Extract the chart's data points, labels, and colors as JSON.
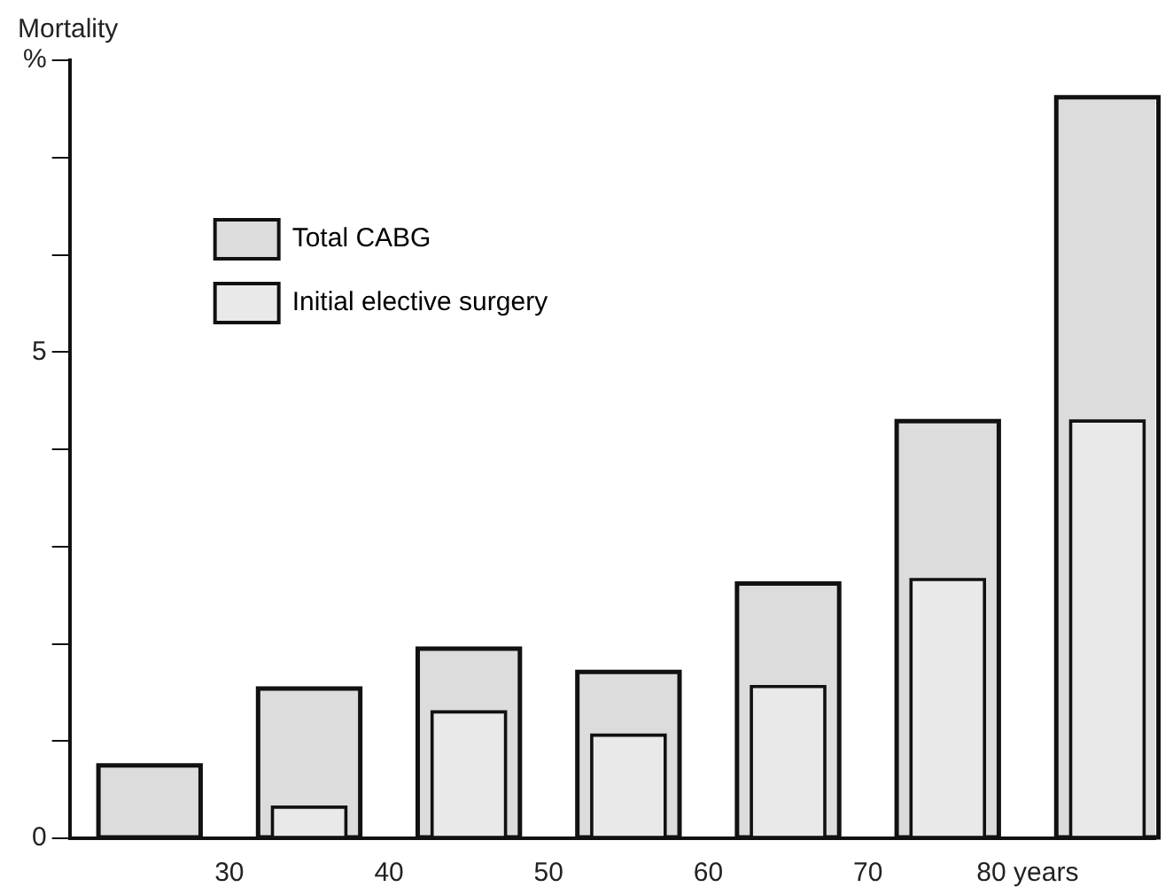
{
  "chart_data": {
    "type": "bar",
    "ylabel": "Mortality",
    "x": [
      25,
      35,
      45,
      55,
      65,
      75,
      85
    ],
    "xlim": [
      20,
      88
    ],
    "xticks": [
      30,
      40,
      50,
      60,
      70,
      {
        "value": 80,
        "label": "80 years"
      }
    ],
    "ylim": [
      0,
      8
    ],
    "yticks": [
      0,
      {
        "value": 1,
        "label": null
      },
      {
        "value": 2,
        "label": null
      },
      {
        "value": 3,
        "label": null
      },
      {
        "value": 4,
        "label": null
      },
      5,
      {
        "value": 6,
        "label": null
      },
      {
        "value": 7,
        "label": null
      },
      {
        "value": 8,
        "label": "%"
      }
    ],
    "series": [
      {
        "name": "Total CABG",
        "color": "#dcdcdc",
        "values": [
          0.75,
          1.54,
          1.95,
          1.71,
          2.62,
          4.29,
          7.62
        ]
      },
      {
        "name": "Initial elective surgery",
        "color": "#e9e9e9",
        "values": [
          null,
          0.32,
          1.3,
          1.06,
          1.56,
          2.66,
          4.29
        ]
      }
    ],
    "grid": false,
    "legend": "top left"
  }
}
